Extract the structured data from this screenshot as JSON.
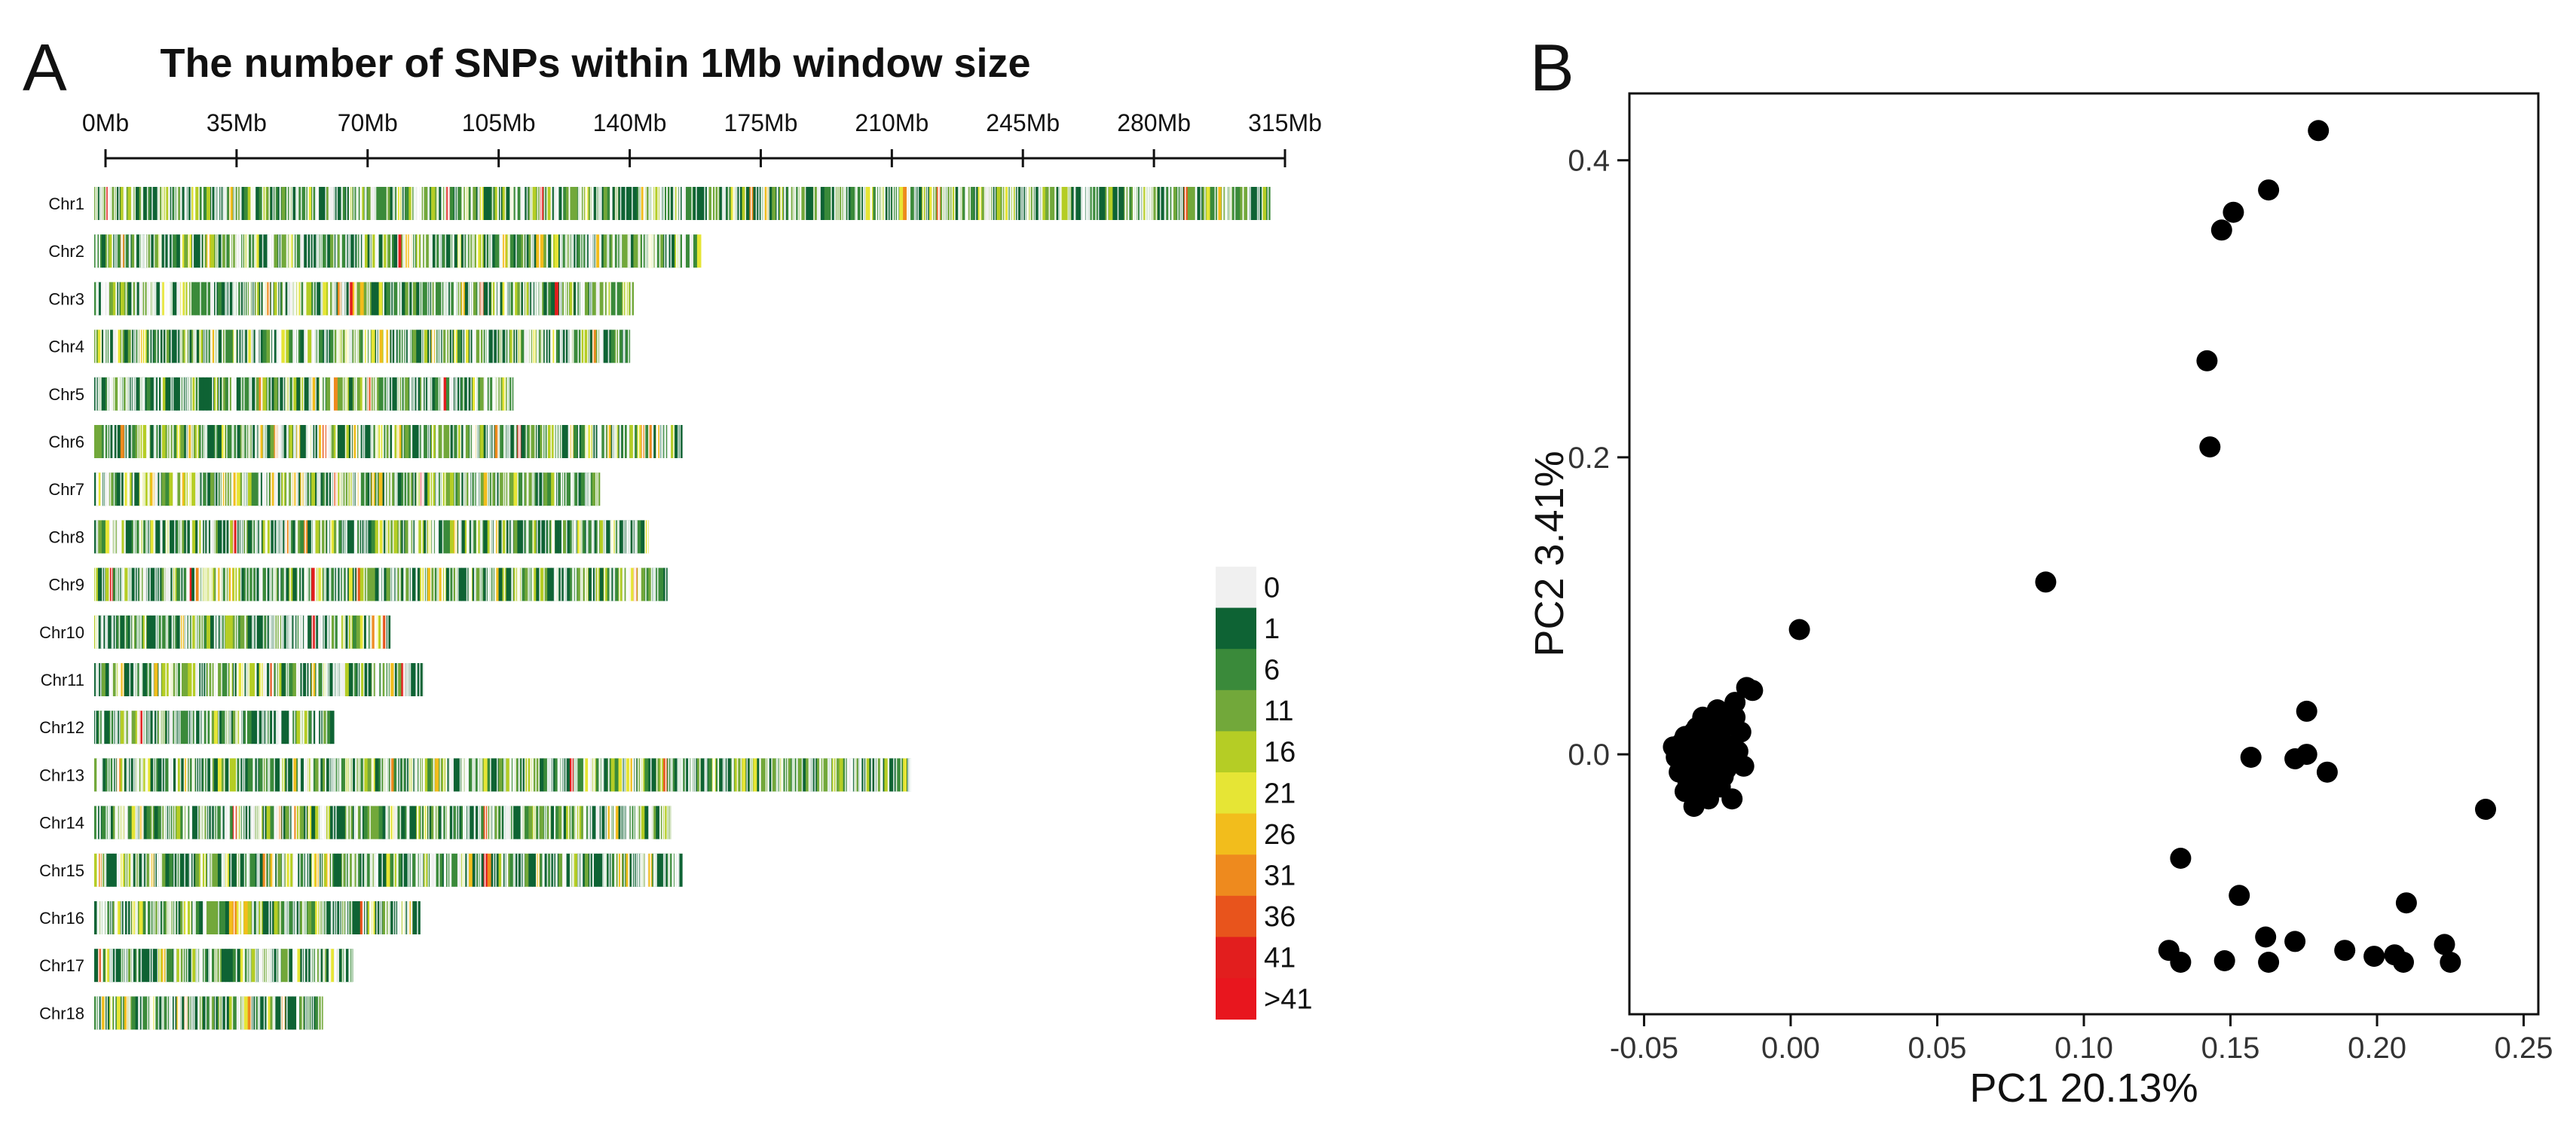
{
  "chart_data": [
    {
      "panel": "A",
      "type": "heatmap",
      "title": "The number of SNPs within 1Mb window size",
      "x_ticks": [
        "0Mb",
        "35Mb",
        "70Mb",
        "105Mb",
        "140Mb",
        "175Mb",
        "210Mb",
        "245Mb",
        "280Mb",
        "315Mb"
      ],
      "x_range_mb": [
        0,
        315
      ],
      "chromosomes": [
        {
          "name": "Chr1",
          "length_mb": 314
        },
        {
          "name": "Chr2",
          "length_mb": 162
        },
        {
          "name": "Chr3",
          "length_mb": 144
        },
        {
          "name": "Chr4",
          "length_mb": 143
        },
        {
          "name": "Chr5",
          "length_mb": 112
        },
        {
          "name": "Chr6",
          "length_mb": 157
        },
        {
          "name": "Chr7",
          "length_mb": 135
        },
        {
          "name": "Chr8",
          "length_mb": 148
        },
        {
          "name": "Chr9",
          "length_mb": 153
        },
        {
          "name": "Chr10",
          "length_mb": 79
        },
        {
          "name": "Chr11",
          "length_mb": 88
        },
        {
          "name": "Chr12",
          "length_mb": 64
        },
        {
          "name": "Chr13",
          "length_mb": 218
        },
        {
          "name": "Chr14",
          "length_mb": 154
        },
        {
          "name": "Chr15",
          "length_mb": 157
        },
        {
          "name": "Chr16",
          "length_mb": 87
        },
        {
          "name": "Chr17",
          "length_mb": 69
        },
        {
          "name": "Chr18",
          "length_mb": 61
        }
      ],
      "legend": {
        "labels": [
          "0",
          "1",
          "6",
          "11",
          "16",
          "21",
          "26",
          "31",
          "36",
          "41",
          ">41"
        ],
        "colors": [
          "#f0f0f0",
          "#0e6334",
          "#3a8a3a",
          "#72a83a",
          "#b5cd25",
          "#e6e535",
          "#f2bd1c",
          "#ee8a1e",
          "#e8541c",
          "#e21e1e",
          "#e8161e"
        ]
      }
    },
    {
      "panel": "B",
      "type": "scatter",
      "xlabel": "PC1 20.13%",
      "ylabel": "PC2 3.41%",
      "xlim": [
        -0.055,
        0.255
      ],
      "ylim": [
        -0.175,
        0.445
      ],
      "x_ticks": [
        "-0.05",
        "0.00",
        "0.05",
        "0.10",
        "0.15",
        "0.20",
        "0.25"
      ],
      "y_ticks": [
        "0.0",
        "0.2",
        "0.4"
      ],
      "x_tick_values": [
        -0.05,
        0,
        0.05,
        0.1,
        0.15,
        0.2,
        0.25
      ],
      "y_tick_values": [
        0,
        0.2,
        0.4
      ],
      "points": [
        {
          "x": 0.18,
          "y": 0.42
        },
        {
          "x": 0.163,
          "y": 0.38
        },
        {
          "x": 0.151,
          "y": 0.365
        },
        {
          "x": 0.147,
          "y": 0.353
        },
        {
          "x": 0.142,
          "y": 0.265
        },
        {
          "x": 0.143,
          "y": 0.207
        },
        {
          "x": 0.087,
          "y": 0.116
        },
        {
          "x": 0.003,
          "y": 0.084
        },
        {
          "x": 0.176,
          "y": 0.029
        },
        {
          "x": 0.157,
          "y": -0.002
        },
        {
          "x": 0.172,
          "y": -0.003
        },
        {
          "x": 0.176,
          "y": 0
        },
        {
          "x": 0.183,
          "y": -0.012
        },
        {
          "x": 0.237,
          "y": -0.037
        },
        {
          "x": 0.133,
          "y": -0.07
        },
        {
          "x": 0.153,
          "y": -0.095
        },
        {
          "x": 0.21,
          "y": -0.1
        },
        {
          "x": 0.129,
          "y": -0.132
        },
        {
          "x": 0.133,
          "y": -0.14
        },
        {
          "x": 0.148,
          "y": -0.139
        },
        {
          "x": 0.162,
          "y": -0.123
        },
        {
          "x": 0.163,
          "y": -0.14
        },
        {
          "x": 0.172,
          "y": -0.126
        },
        {
          "x": 0.189,
          "y": -0.132
        },
        {
          "x": 0.199,
          "y": -0.136
        },
        {
          "x": 0.206,
          "y": -0.135
        },
        {
          "x": 0.209,
          "y": -0.14
        },
        {
          "x": 0.223,
          "y": -0.128
        },
        {
          "x": 0.225,
          "y": -0.14
        },
        {
          "x": -0.04,
          "y": 0.005
        },
        {
          "x": -0.038,
          "y": -0.012
        },
        {
          "x": -0.036,
          "y": 0.012
        },
        {
          "x": -0.035,
          "y": -0.02
        },
        {
          "x": -0.034,
          "y": 0.002
        },
        {
          "x": -0.033,
          "y": -0.035
        },
        {
          "x": -0.032,
          "y": 0.018
        },
        {
          "x": -0.031,
          "y": -0.008
        },
        {
          "x": -0.03,
          "y": -0.028
        },
        {
          "x": -0.029,
          "y": 0.01
        },
        {
          "x": -0.028,
          "y": -0.015
        },
        {
          "x": -0.027,
          "y": 0.022
        },
        {
          "x": -0.026,
          "y": -0.002
        },
        {
          "x": -0.025,
          "y": 0.03
        },
        {
          "x": -0.024,
          "y": -0.022
        },
        {
          "x": -0.023,
          "y": 0.008
        },
        {
          "x": -0.022,
          "y": -0.01
        },
        {
          "x": -0.021,
          "y": 0.02
        },
        {
          "x": -0.02,
          "y": -0.03
        },
        {
          "x": -0.019,
          "y": 0.035
        },
        {
          "x": -0.018,
          "y": 0.002
        },
        {
          "x": -0.017,
          "y": 0.015
        },
        {
          "x": -0.016,
          "y": -0.008
        },
        {
          "x": -0.015,
          "y": 0.045
        },
        {
          "x": -0.013,
          "y": 0.043
        },
        {
          "x": -0.039,
          "y": -0.002
        },
        {
          "x": -0.037,
          "y": 0.008
        },
        {
          "x": -0.036,
          "y": -0.025
        },
        {
          "x": -0.033,
          "y": 0.015
        },
        {
          "x": -0.031,
          "y": 0.005
        },
        {
          "x": -0.029,
          "y": -0.02
        },
        {
          "x": -0.027,
          "y": 0
        },
        {
          "x": -0.025,
          "y": 0.012
        },
        {
          "x": -0.023,
          "y": -0.015
        },
        {
          "x": -0.021,
          "y": 0.005
        },
        {
          "x": -0.019,
          "y": 0.025
        },
        {
          "x": -0.034,
          "y": -0.005
        },
        {
          "x": -0.03,
          "y": 0.025
        },
        {
          "x": -0.028,
          "y": -0.03
        },
        {
          "x": -0.026,
          "y": -0.01
        },
        {
          "x": -0.024,
          "y": 0.018
        },
        {
          "x": -0.022,
          "y": -0.005
        },
        {
          "x": -0.032,
          "y": -0.015
        },
        {
          "x": -0.035,
          "y": 0.002
        }
      ]
    }
  ]
}
